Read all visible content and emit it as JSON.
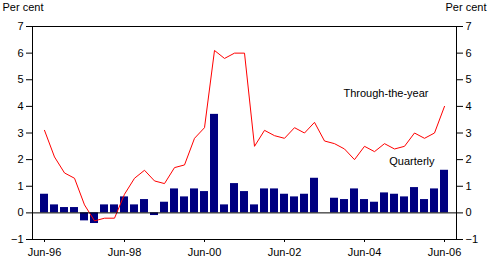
{
  "chart_data": {
    "type": "bar",
    "categories": [
      "Jun-96",
      null,
      null,
      null,
      null,
      null,
      null,
      null,
      "Jun-98",
      null,
      null,
      null,
      null,
      null,
      null,
      null,
      "Jun-00",
      null,
      null,
      null,
      null,
      null,
      null,
      null,
      "Jun-02",
      null,
      null,
      null,
      null,
      null,
      null,
      null,
      "Jun-04",
      null,
      null,
      null,
      null,
      null,
      null,
      null,
      "Jun-06"
    ],
    "y_label": "Per cent",
    "y2_label": "Per cent",
    "series": [
      {
        "name": "Quarterly",
        "type": "bar",
        "color": "#000080",
        "values": [
          0.7,
          0.3,
          0.2,
          0.2,
          -0.3,
          -0.4,
          0.3,
          0.3,
          0.6,
          0.3,
          0.5,
          -0.1,
          0.4,
          0.9,
          0.6,
          0.9,
          0.8,
          3.7,
          0.3,
          1.1,
          0.8,
          0.3,
          0.9,
          0.9,
          0.7,
          0.6,
          0.7,
          1.3,
          0.0,
          0.55,
          0.5,
          0.9,
          0.5,
          0.4,
          0.75,
          0.7,
          0.6,
          0.95,
          0.5,
          0.9,
          1.6
        ]
      },
      {
        "name": "Through-the-year",
        "type": "line",
        "color": "#ff0000",
        "values": [
          3.1,
          2.1,
          1.5,
          1.3,
          0.3,
          -0.3,
          -0.2,
          -0.2,
          0.7,
          1.3,
          1.6,
          1.2,
          1.1,
          1.7,
          1.8,
          2.8,
          3.2,
          6.1,
          5.8,
          6.0,
          6.0,
          2.5,
          3.1,
          2.9,
          2.8,
          3.2,
          3.0,
          3.4,
          2.7,
          2.6,
          2.4,
          2.0,
          2.5,
          2.3,
          2.6,
          2.4,
          2.5,
          3.0,
          2.8,
          3.0,
          4.0
        ]
      }
    ],
    "ylim": [
      -1,
      7
    ],
    "yticks": [
      -1,
      0,
      1,
      2,
      3,
      4,
      5,
      6,
      7
    ],
    "y2lim": [
      -1,
      7
    ],
    "y2ticks": [
      -1,
      0,
      1,
      2,
      3,
      4,
      5,
      6,
      7
    ],
    "grid": false
  }
}
